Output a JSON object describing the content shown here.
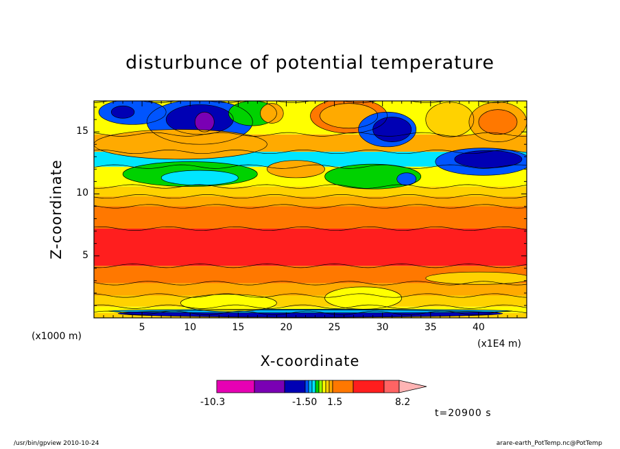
{
  "chart_data": {
    "type": "heatmap",
    "title": "disturbunce of potential temperature",
    "xlabel": "X-coordinate",
    "ylabel": "Z-coordinate",
    "x_unit": "(x1000 m)",
    "x_scale_note": "(x1E4 m)",
    "xlim": [
      0,
      45
    ],
    "ylim": [
      0,
      17.5
    ],
    "x_ticks": [
      5,
      10,
      15,
      20,
      25,
      30,
      35,
      40
    ],
    "y_ticks": [
      5,
      10,
      15
    ],
    "colorbar": {
      "colors": [
        "#e600b4",
        "#7a00b4",
        "#0000b4",
        "#0055ff",
        "#00b4ff",
        "#00e6ff",
        "#00d200",
        "#96ff00",
        "#ffff00",
        "#ffd200",
        "#ffaa00",
        "#ff7800",
        "#ff1e1e",
        "#ff6464",
        "#ffb4b4"
      ],
      "labels": [
        "-10.3",
        "-1.50",
        "1.5",
        "8.2"
      ]
    },
    "time_label": "t=20900 s"
  },
  "footer": {
    "left": "/usr/bin/gpview   2010-10-24",
    "right": "arare-earth_PotTemp.nc@PotTemp"
  }
}
